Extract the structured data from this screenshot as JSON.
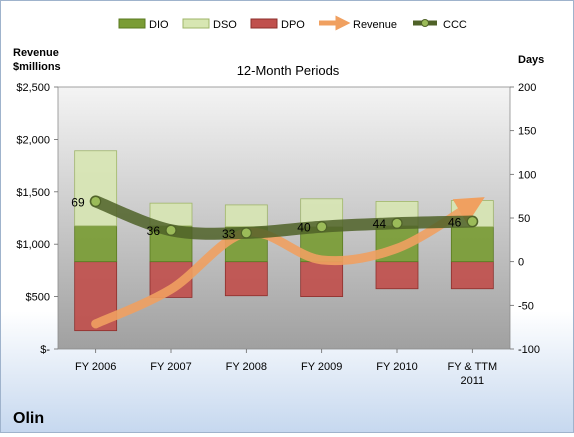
{
  "company": "Olin",
  "chart_data": {
    "type": "bar",
    "title": "12-Month Periods",
    "left_axis_label": [
      "Revenue",
      "$millions"
    ],
    "right_axis_label": "Days",
    "categories": [
      "FY 2006",
      "FY 2007",
      "FY 2008",
      "FY 2009",
      "FY 2010",
      "FY & TTM 2011"
    ],
    "left_ticks": [
      "$-",
      "$500",
      "$1,000",
      "$1,500",
      "$2,000",
      "$2,500"
    ],
    "right_ticks": [
      "-100",
      "-50",
      "0",
      "50",
      "100",
      "150",
      "200"
    ],
    "left_ylim": [
      0,
      2500
    ],
    "right_ylim": [
      -100,
      200
    ],
    "legend": [
      "DIO",
      "DSO",
      "DPO",
      "Revenue",
      "CCC"
    ],
    "legend_position": "top",
    "grid": false,
    "series": [
      {
        "name": "DIO",
        "color": "#7a9c35",
        "values": [
          41,
          41,
          40,
          40,
          41,
          40
        ]
      },
      {
        "name": "DSO",
        "color": "#c9dd9a",
        "values": [
          86,
          26,
          25,
          32,
          28,
          30
        ]
      },
      {
        "name": "DPO",
        "color": "#c0504d",
        "values": [
          -79,
          -41,
          -39,
          -40,
          -31,
          -31
        ]
      },
      {
        "name": "Revenue",
        "color": "#f0a060",
        "values": [
          240,
          570,
          1110,
          850,
          960,
          1380
        ]
      },
      {
        "name": "CCC",
        "color": "#4f6228",
        "values": [
          69,
          36,
          33,
          40,
          44,
          46
        ]
      }
    ],
    "ccc_labels": [
      "69",
      "36",
      "33",
      "40",
      "44",
      "46"
    ]
  }
}
